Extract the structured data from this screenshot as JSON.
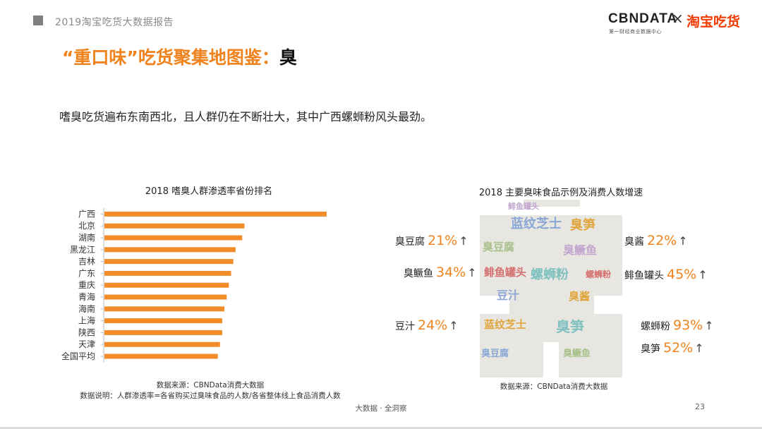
{
  "header": {
    "report_title": "2019淘宝吃货大数据报告",
    "logo_cbn": "CBNDATA",
    "logo_cbn_sub": "第一财经商业数据中心",
    "logo_x": "×",
    "logo_taobao": "淘宝吃货"
  },
  "headline": {
    "quoted": "“重口味”吃货聚集地图鉴：",
    "keyword": "臭"
  },
  "subtitle": "嗜臭吃货遍布东南西北，且人群仍在不断壮大，其中广西螺蛳粉风头最劲。",
  "chart_data": {
    "type": "bar",
    "orientation": "horizontal",
    "title": "2018 嗜臭人群渗透率省份排名",
    "categories": [
      "广西",
      "北京",
      "湖南",
      "黑龙江",
      "吉林",
      "广东",
      "重庆",
      "青海",
      "海南",
      "上海",
      "陕西",
      "天津",
      "全国平均"
    ],
    "values": [
      100,
      63,
      62,
      59,
      58,
      57,
      56,
      55,
      54,
      53,
      53,
      52,
      51
    ],
    "xlim": [
      0,
      100
    ],
    "xlabel": "",
    "ylabel": "",
    "grid": false,
    "legend": "none",
    "bar_color": "#f28c28",
    "source": "数据来源：CBNData消费大数据",
    "note": "数据说明：人群渗透率=各省购买过臭味食品的人数/各省整体线上食品消费人数"
  },
  "food_panel": {
    "title": "2018 主要臭味食品示例及消费人数增速",
    "arrow": "↑",
    "items": [
      {
        "name": "臭豆腐",
        "pct": "21%"
      },
      {
        "name": "臭鳜鱼",
        "pct": "34%"
      },
      {
        "name": "豆汁",
        "pct": "24%"
      },
      {
        "name": "臭酱",
        "pct": "22%"
      },
      {
        "name": "鲱鱼罐头",
        "pct": "45%"
      },
      {
        "name": "螺蛳粉",
        "pct": "93%"
      },
      {
        "name": "臭笋",
        "pct": "52%"
      }
    ],
    "cloud_words": [
      "蓝纹芝士",
      "臭笋",
      "臭豆腐",
      "臭鳜鱼",
      "鲱鱼罐头",
      "螺蛳粉",
      "豆汁",
      "臭酱"
    ],
    "cloud_colors": [
      "#8aa7d6",
      "#e0a53b",
      "#a8c08a",
      "#c3a6cf",
      "#d46e6e",
      "#7fc0c0"
    ],
    "source": "数据来源：CBNData消费大数据"
  },
  "footer": {
    "center": "大数据 · 全洞察",
    "page": "23"
  }
}
